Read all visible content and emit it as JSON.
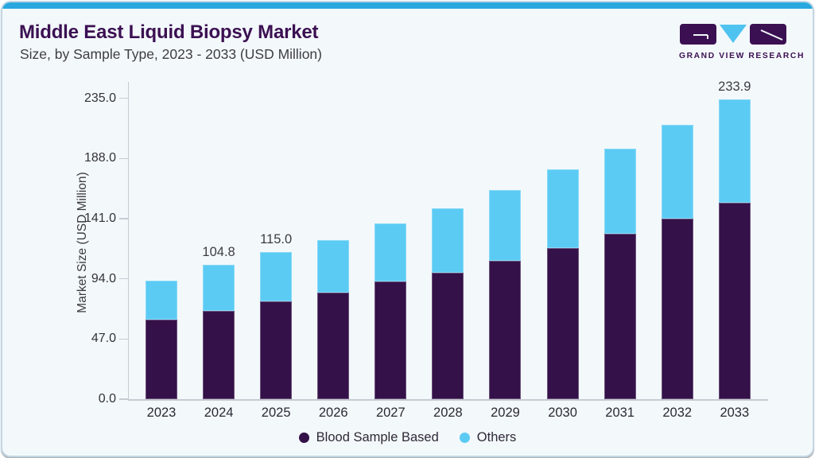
{
  "header": {
    "title": "Middle East Liquid Biopsy Market",
    "subtitle": "Size, by Sample Type, 2023 - 2033 (USD Million)"
  },
  "logo": {
    "text": "GRAND VIEW RESEARCH"
  },
  "colors": {
    "accent_top_bar": "#29A8DF",
    "title_purple": "#3B1052",
    "blood_sample_based": "#341149",
    "others_blue": "#5BCBF4",
    "logo_triangle_blue": "#4FC3F0",
    "card_background": "#F3F8FB",
    "axis_gray": "#C6CBD3"
  },
  "chart_data": {
    "type": "bar",
    "stacked": true,
    "title": "Middle East Liquid Biopsy Market Size, by Sample Type, 2023 - 2033 (USD Million)",
    "ylabel": "Market Size (USD Million)",
    "xlabel": "",
    "ylim": [
      0,
      235
    ],
    "y_ticks": [
      "0.0",
      "47.0",
      "94.0",
      "141.0",
      "188.0",
      "235.0"
    ],
    "grid": false,
    "legend_position": "bottom",
    "categories": [
      "2023",
      "2024",
      "2025",
      "2026",
      "2027",
      "2028",
      "2029",
      "2030",
      "2031",
      "2032",
      "2033"
    ],
    "series": [
      {
        "name": "Blood Sample Based",
        "color": "#341149",
        "values": [
          62.4,
          69.0,
          76.2,
          83.5,
          91.7,
          99.0,
          108.1,
          118.3,
          129.0,
          140.8,
          153.5
        ]
      },
      {
        "name": "Others",
        "color": "#5BCBF4",
        "values": [
          30.0,
          35.8,
          38.8,
          41.0,
          45.6,
          50.1,
          55.5,
          61.0,
          66.7,
          73.5,
          80.4
        ]
      }
    ],
    "total_labels": [
      "",
      "104.8",
      "115.0",
      "",
      "",
      "",
      "",
      "",
      "",
      "",
      "233.9"
    ]
  }
}
